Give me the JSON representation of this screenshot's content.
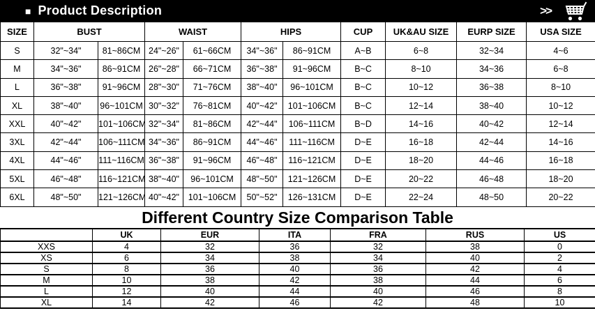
{
  "header": {
    "bullet_icon": "■",
    "title": "Product Description",
    "more_label": ">>",
    "cart_icon": "shopping-cart",
    "bar_color": "#000000",
    "text_color": "#ffffff"
  },
  "size_table": {
    "columns": [
      "SIZE",
      "BUST",
      "WAIST",
      "HIPS",
      "CUP",
      "UK&AU SIZE",
      "EURP SIZE",
      "USA SIZE"
    ],
    "rows": [
      [
        "S",
        "32\"~34\"",
        "81~86CM",
        "24\"~26\"",
        "61~66CM",
        "34\"~36\"",
        "86~91CM",
        "A~B",
        "6~8",
        "32~34",
        "4~6"
      ],
      [
        "M",
        "34\"~36\"",
        "86~91CM",
        "26\"~28\"",
        "66~71CM",
        "36\"~38\"",
        "91~96CM",
        "B~C",
        "8~10",
        "34~36",
        "6~8"
      ],
      [
        "L",
        "36\"~38\"",
        "91~96CM",
        "28\"~30\"",
        "71~76CM",
        "38\"~40\"",
        "96~101CM",
        "B~C",
        "10~12",
        "36~38",
        "8~10"
      ],
      [
        "XL",
        "38\"~40\"",
        "96~101CM",
        "30\"~32\"",
        "76~81CM",
        "40\"~42\"",
        "101~106CM",
        "B~C",
        "12~14",
        "38~40",
        "10~12"
      ],
      [
        "XXL",
        "40\"~42\"",
        "101~106CM",
        "32\"~34\"",
        "81~86CM",
        "42\"~44\"",
        "106~111CM",
        "B~D",
        "14~16",
        "40~42",
        "12~14"
      ],
      [
        "3XL",
        "42\"~44\"",
        "106~111CM",
        "34\"~36\"",
        "86~91CM",
        "44\"~46\"",
        "111~116CM",
        "D~E",
        "16~18",
        "42~44",
        "14~16"
      ],
      [
        "4XL",
        "44\"~46\"",
        "111~116CM",
        "36\"~38\"",
        "91~96CM",
        "46\"~48\"",
        "116~121CM",
        "D~E",
        "18~20",
        "44~46",
        "16~18"
      ],
      [
        "5XL",
        "46\"~48\"",
        "116~121CM",
        "38\"~40\"",
        "96~101CM",
        "48\"~50\"",
        "121~126CM",
        "D~E",
        "20~22",
        "46~48",
        "18~20"
      ],
      [
        "6XL",
        "48\"~50\"",
        "121~126CM",
        "40\"~42\"",
        "101~106CM",
        "50\"~52\"",
        "126~131CM",
        "D~E",
        "22~24",
        "48~50",
        "20~22"
      ]
    ]
  },
  "comparison_title": "Different Country Size Comparison Table",
  "comparison_table": {
    "columns": [
      "",
      "UK",
      "EUR",
      "ITA",
      "FRA",
      "RUS",
      "US"
    ],
    "rows": [
      [
        "XXS",
        "4",
        "32",
        "36",
        "32",
        "38",
        "0"
      ],
      [
        "XS",
        "6",
        "34",
        "38",
        "34",
        "40",
        "2"
      ],
      [
        "S",
        "8",
        "36",
        "40",
        "36",
        "42",
        "4"
      ],
      [
        "M",
        "10",
        "38",
        "42",
        "38",
        "44",
        "6"
      ],
      [
        "L",
        "12",
        "40",
        "44",
        "40",
        "46",
        "8"
      ],
      [
        "XL",
        "14",
        "42",
        "46",
        "42",
        "48",
        "10"
      ]
    ]
  }
}
